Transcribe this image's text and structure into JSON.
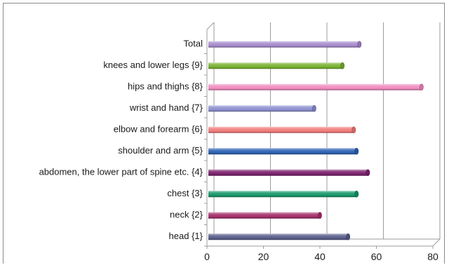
{
  "chart_data": {
    "type": "bar",
    "orientation": "horizontal",
    "categories": [
      "head {1}",
      "neck {2}",
      "chest {3}",
      "abdomen, the lower part of spine etc. {4}",
      "shoulder and arm {5}",
      "elbow and forearm {6}",
      "wrist and hand {7}",
      "hips and thighs  {8}",
      "knees and lower legs {9}",
      "Total"
    ],
    "values": [
      50,
      40,
      53,
      57,
      53,
      52,
      38,
      76,
      48,
      54
    ],
    "colors": [
      "#5b5f8c",
      "#a52f6a",
      "#18986a",
      "#7d226f",
      "#2e63b3",
      "#f07c7a",
      "#8d91cf",
      "#f08cc0",
      "#7ab231",
      "#a78bcc"
    ],
    "xlim": [
      0,
      80
    ],
    "xticks": [
      0,
      20,
      40,
      60,
      80
    ],
    "grid": true,
    "legend": "none",
    "title": "",
    "xlabel": "",
    "ylabel": ""
  }
}
